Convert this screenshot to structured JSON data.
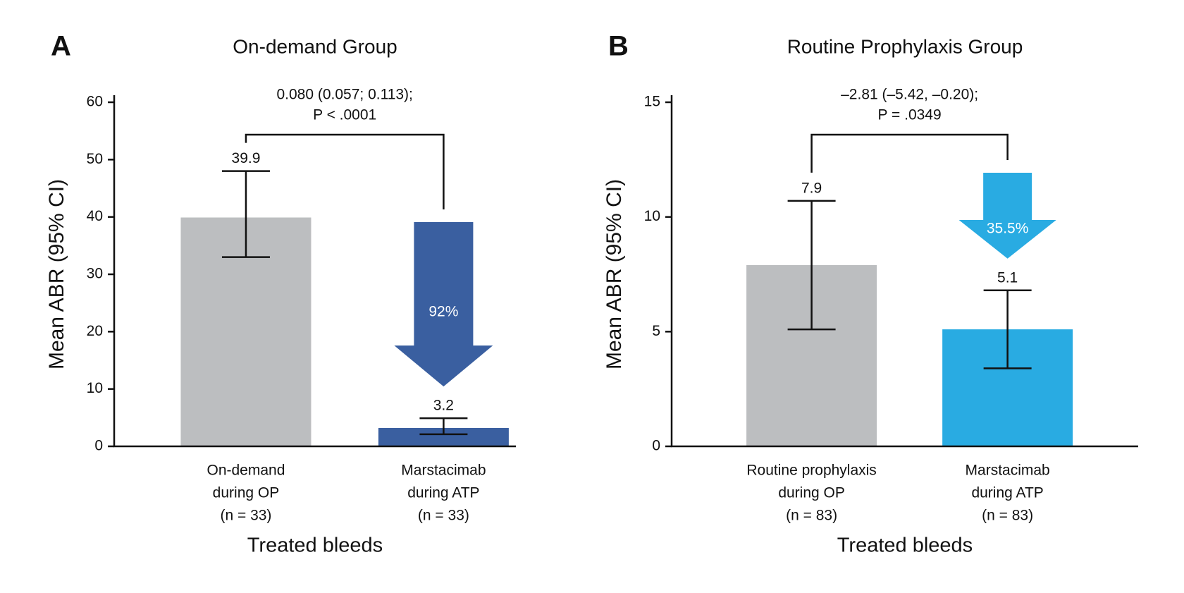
{
  "chart_data": [
    {
      "type": "bar",
      "label": "A",
      "title": "On-demand Group",
      "annotation": [
        "0.080 (0.057; 0.113);",
        "P < .0001"
      ],
      "arrow_label": "92%",
      "ylabel": "Mean ABR (95% CI)",
      "xlabel": "Treated bleeds",
      "categories": [
        [
          "On-demand",
          "during OP",
          "(n = 33)"
        ],
        [
          "Marstacimab",
          "during ATP",
          "(n = 33)"
        ]
      ],
      "values": [
        39.9,
        3.2
      ],
      "ci_low": [
        33.0,
        2.1
      ],
      "ci_high": [
        48.0,
        4.9
      ],
      "colors": [
        "#bcbec0",
        "#3a5fa0"
      ],
      "ylim": [
        0,
        60
      ],
      "yticks": [
        0,
        10,
        20,
        30,
        40,
        50,
        60
      ]
    },
    {
      "type": "bar",
      "label": "B",
      "title": "Routine Prophylaxis Group",
      "annotation": [
        "–2.81 (–5.42, –0.20);",
        "P = .0349"
      ],
      "arrow_label": "35.5%",
      "ylabel": "Mean ABR (95% CI)",
      "xlabel": "Treated bleeds",
      "categories": [
        [
          "Routine prophylaxis",
          "during OP",
          "(n = 83)"
        ],
        [
          "Marstacimab",
          "during ATP",
          "(n = 83)"
        ]
      ],
      "values": [
        7.9,
        5.1
      ],
      "ci_low": [
        5.1,
        3.4
      ],
      "ci_high": [
        10.7,
        6.8
      ],
      "colors": [
        "#bcbec0",
        "#29abe2"
      ],
      "ylim": [
        0,
        15
      ],
      "yticks": [
        0,
        5,
        10,
        15
      ]
    }
  ]
}
